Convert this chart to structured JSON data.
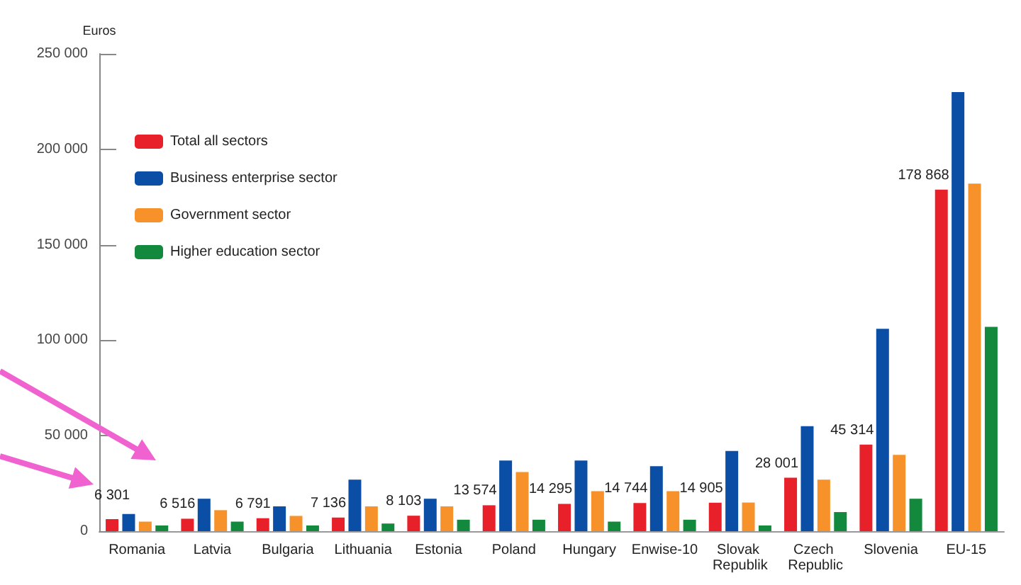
{
  "chart_data": {
    "type": "bar",
    "ylabel": "Euros",
    "categories": [
      "Romania",
      "Latvia",
      "Bulgaria",
      "Lithuania",
      "Estonia",
      "Poland",
      "Hungary",
      "Enwise-10",
      "Slovak Republik",
      "Czech Republic",
      "Slovenia",
      "EU-15"
    ],
    "series": [
      {
        "name": "Total all sectors",
        "color": "#e8202a",
        "values": [
          6301,
          6516,
          6791,
          7136,
          8103,
          13574,
          14295,
          14744,
          14905,
          28001,
          45314,
          178868
        ],
        "value_labels": [
          "6 301",
          "6 516",
          "6 791",
          "7 136",
          "8 103",
          "13 574",
          "14 295",
          "14 744",
          "14 905",
          "28 001",
          "45 314",
          "178 868"
        ]
      },
      {
        "name": "Business enterprise sector",
        "color": "#0a4ea6",
        "values": [
          9000,
          17000,
          13000,
          27000,
          17000,
          37000,
          37000,
          34000,
          42000,
          55000,
          106000,
          230000
        ]
      },
      {
        "name": "Government sector",
        "color": "#f7922a",
        "values": [
          5000,
          11000,
          8000,
          13000,
          13000,
          31000,
          21000,
          21000,
          15000,
          27000,
          40000,
          182000
        ]
      },
      {
        "name": "Higher education sector",
        "color": "#12893c",
        "values": [
          3000,
          5000,
          3000,
          4000,
          6000,
          6000,
          5000,
          6000,
          3000,
          10000,
          17000,
          107000
        ]
      }
    ],
    "ylim": [
      0,
      250000
    ],
    "yticks": [
      {
        "value": 0,
        "label": "0"
      },
      {
        "value": 50000,
        "label": "50 000"
      },
      {
        "value": 100000,
        "label": "100 000"
      },
      {
        "value": 150000,
        "label": "150 000"
      },
      {
        "value": 200000,
        "label": "200 000"
      },
      {
        "value": 250000,
        "label": "250 000"
      }
    ],
    "grid": false,
    "legend": "top left"
  }
}
